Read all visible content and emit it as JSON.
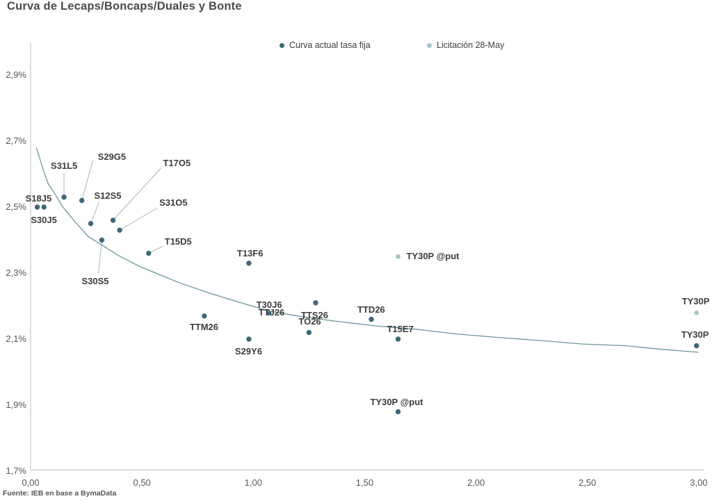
{
  "title": "Curva de Lecaps/Boncaps/Duales y Bonte",
  "source": "Fuente: IEB en base a BymaData",
  "legend": {
    "items": [
      {
        "label": "Curva actual tasa fija",
        "color": "#3e6976"
      },
      {
        "label": "Licitación 28-May",
        "color": "#a6c3ca"
      }
    ]
  },
  "colors": {
    "series_actual": "#3e6976",
    "series_licitacion": "#a6c3ca",
    "curve_line": "#6b96a0",
    "axis_line": "#c9c9c9",
    "leader_line": "#a9b2b5"
  },
  "chart_data": {
    "type": "scatter",
    "title": "Curva de Lecaps/Boncaps/Duales y Bonte",
    "xlabel": "",
    "ylabel": "",
    "xlim": [
      0,
      3.05
    ],
    "ylim": [
      1.7,
      3.0
    ],
    "grid": false,
    "legend_position": "top",
    "x_ticks": {
      "values": [
        0,
        0.5,
        1.0,
        1.5,
        2.0,
        2.5,
        3.0
      ],
      "labels": [
        "0,00",
        "0,50",
        "1,00",
        "1,50",
        "2,00",
        "2,50",
        "3,00"
      ]
    },
    "y_ticks": {
      "values": [
        2.9,
        2.7,
        2.5,
        2.3,
        2.1,
        1.9,
        1.7
      ],
      "labels": [
        "2,9%",
        "2,7%",
        "2,5%",
        "2,3%",
        "2,1%",
        "1,9%",
        "1,7%"
      ]
    },
    "series": [
      {
        "name": "Curva actual tasa fija",
        "kind": "scatter",
        "color": "#3e6976",
        "points": [
          {
            "label": "S18J5",
            "x": 0.03,
            "y": 2.5,
            "label_dx": -17,
            "label_dy": -20
          },
          {
            "label": "S30J5",
            "x": 0.06,
            "y": 2.5,
            "label_dx": -19,
            "label_dy": 11
          },
          {
            "label": "S31L5",
            "x": 0.15,
            "y": 2.53,
            "label_dx": -19,
            "label_dy": -53,
            "leader": [
              0,
              -34
            ]
          },
          {
            "label": "S29G5",
            "x": 0.23,
            "y": 2.52,
            "label_dx": 23,
            "label_dy": -71,
            "leader": [
              16,
              -58
            ]
          },
          {
            "label": "S12S5",
            "x": 0.27,
            "y": 2.45,
            "label_dx": 5,
            "label_dy": -48,
            "leader": [
              12,
              -31
            ]
          },
          {
            "label": "T17O5",
            "x": 0.37,
            "y": 2.46,
            "label_dx": 72,
            "label_dy": -90,
            "leader": [
              69,
              -75
            ]
          },
          {
            "label": "S31O5",
            "x": 0.4,
            "y": 2.43,
            "label_dx": 57,
            "label_dy": -47,
            "leader": [
              54,
              -32
            ]
          },
          {
            "label": "S30S5",
            "x": 0.32,
            "y": 2.4,
            "label_dx": -29,
            "label_dy": 51,
            "leader": [
              -5,
              48
            ]
          },
          {
            "label": "T15D5",
            "x": 0.53,
            "y": 2.36,
            "label_dx": 23,
            "label_dy": -25,
            "leader": [
              20,
              -10
            ]
          },
          {
            "label": "T13F6",
            "x": 0.98,
            "y": 2.33,
            "label_dx": -17,
            "label_dy": -22
          },
          {
            "label": "TTM26",
            "x": 0.78,
            "y": 2.17,
            "label_dx": -21,
            "label_dy": 8
          },
          {
            "label": "S29Y6",
            "x": 0.98,
            "y": 2.1,
            "label_dx": -20,
            "label_dy": 10
          },
          {
            "label": "T30J6",
            "x": 1.07,
            "y": 2.18,
            "label_dx": -18,
            "label_dy": -19
          },
          {
            "label": "TTJ26",
            "x": 1.07,
            "y": 2.18,
            "label_dx": -15,
            "label_dy": -8
          },
          {
            "label": "TTS26",
            "x": 1.28,
            "y": 2.21,
            "label_dx": -21,
            "label_dy": 10
          },
          {
            "label": "TO26",
            "x": 1.25,
            "y": 2.12,
            "label_dx": -15,
            "label_dy": -24
          },
          {
            "label": "TTD26",
            "x": 1.53,
            "y": 2.16,
            "label_dx": -20,
            "label_dy": -22
          },
          {
            "label": "T15E7",
            "x": 1.65,
            "y": 2.1,
            "label_dx": -16,
            "label_dy": -22
          },
          {
            "label": "TY30P @put",
            "x": 1.65,
            "y": 1.88,
            "label_dx": -40,
            "label_dy": -22
          },
          {
            "label": "TY30P",
            "x": 2.99,
            "y": 2.08,
            "label_dx": -22,
            "label_dy": -24
          }
        ]
      },
      {
        "name": "Licitación 28-May",
        "kind": "scatter",
        "color": "#a6c3ca",
        "points": [
          {
            "label": "TY30P @put",
            "x": 1.65,
            "y": 2.35,
            "label_dx": 12,
            "label_dy": -8
          },
          {
            "label": "TY30P",
            "x": 2.99,
            "y": 2.18,
            "label_dx": -21,
            "label_dy": -24
          }
        ]
      },
      {
        "name": "Curva ajustada",
        "kind": "line",
        "color": "#6b96a0",
        "points": [
          [
            0.026,
            2.68
          ],
          [
            0.04,
            2.65
          ],
          [
            0.058,
            2.61
          ],
          [
            0.08,
            2.57
          ],
          [
            0.1,
            2.55
          ],
          [
            0.145,
            2.5
          ],
          [
            0.2,
            2.455
          ],
          [
            0.26,
            2.41
          ],
          [
            0.32,
            2.385
          ],
          [
            0.39,
            2.355
          ],
          [
            0.49,
            2.32
          ],
          [
            0.58,
            2.295
          ],
          [
            0.67,
            2.27
          ],
          [
            0.8,
            2.24
          ],
          [
            0.92,
            2.215
          ],
          [
            1.07,
            2.185
          ],
          [
            1.2,
            2.17
          ],
          [
            1.36,
            2.155
          ],
          [
            1.55,
            2.14
          ],
          [
            1.73,
            2.13
          ],
          [
            1.92,
            2.115
          ],
          [
            2.1,
            2.105
          ],
          [
            2.3,
            2.095
          ],
          [
            2.48,
            2.085
          ],
          [
            2.67,
            2.08
          ],
          [
            2.82,
            2.07
          ],
          [
            3.0,
            2.06
          ]
        ]
      }
    ]
  }
}
